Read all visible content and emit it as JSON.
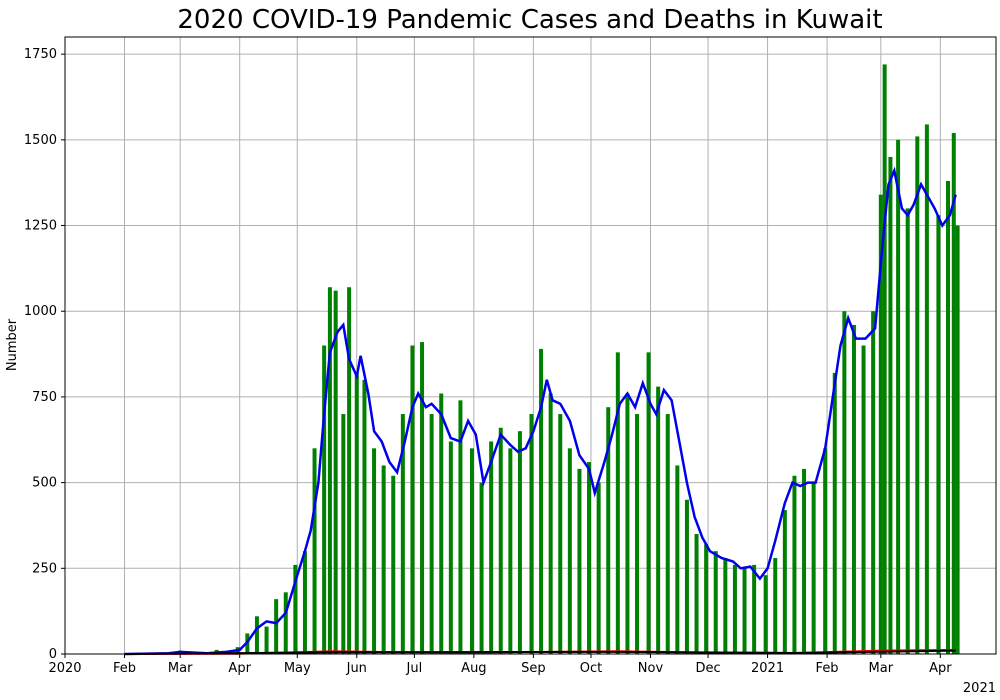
{
  "chart_data": {
    "type": "bar",
    "title": "2020 COVID-19 Pandemic Cases and Deaths in Kuwait",
    "xlabel": "",
    "ylabel": "Number",
    "ylim": [
      0,
      1800
    ],
    "xlim": [
      "2020-01-01",
      "2021-04-30"
    ],
    "grid": true,
    "x_ticks": [
      "2020",
      "Feb",
      "Mar",
      "Apr",
      "May",
      "Jun",
      "Jul",
      "Aug",
      "Sep",
      "Oct",
      "Nov",
      "Dec",
      "2021",
      "Feb",
      "Mar",
      "Apr"
    ],
    "x_tick_dates": [
      "2020-01-01",
      "2020-02-01",
      "2020-03-01",
      "2020-04-01",
      "2020-05-01",
      "2020-06-01",
      "2020-07-01",
      "2020-08-01",
      "2020-09-01",
      "2020-10-01",
      "2020-11-01",
      "2020-12-01",
      "2021-01-01",
      "2021-02-01",
      "2021-03-01",
      "2021-04-01"
    ],
    "x_offset_label": "2021",
    "y_ticks": [
      0,
      250,
      500,
      750,
      1000,
      1250,
      1500,
      1750
    ],
    "colors": {
      "cases": "#008000",
      "average": "#0000ee",
      "deaths": "#ff0000",
      "deaths_avg": "#000000"
    },
    "series": [
      {
        "type": "bar",
        "color": "#008000",
        "values": [
          {
            "x": "2020-02-24",
            "y": 5
          },
          {
            "x": "2020-03-01",
            "y": 10
          },
          {
            "x": "2020-03-10",
            "y": 4
          },
          {
            "x": "2020-03-20",
            "y": 12
          },
          {
            "x": "2020-03-31",
            "y": 20
          },
          {
            "x": "2020-04-05",
            "y": 60
          },
          {
            "x": "2020-04-10",
            "y": 110
          },
          {
            "x": "2020-04-15",
            "y": 80
          },
          {
            "x": "2020-04-20",
            "y": 160
          },
          {
            "x": "2020-04-25",
            "y": 180
          },
          {
            "x": "2020-04-30",
            "y": 260
          },
          {
            "x": "2020-05-05",
            "y": 300
          },
          {
            "x": "2020-05-10",
            "y": 600
          },
          {
            "x": "2020-05-15",
            "y": 900
          },
          {
            "x": "2020-05-18",
            "y": 1070
          },
          {
            "x": "2020-05-21",
            "y": 1060
          },
          {
            "x": "2020-05-25",
            "y": 700
          },
          {
            "x": "2020-05-28",
            "y": 1070
          },
          {
            "x": "2020-06-01",
            "y": 820
          },
          {
            "x": "2020-06-05",
            "y": 800
          },
          {
            "x": "2020-06-10",
            "y": 600
          },
          {
            "x": "2020-06-15",
            "y": 550
          },
          {
            "x": "2020-06-20",
            "y": 520
          },
          {
            "x": "2020-06-25",
            "y": 700
          },
          {
            "x": "2020-06-30",
            "y": 900
          },
          {
            "x": "2020-07-05",
            "y": 910
          },
          {
            "x": "2020-07-10",
            "y": 700
          },
          {
            "x": "2020-07-15",
            "y": 760
          },
          {
            "x": "2020-07-20",
            "y": 620
          },
          {
            "x": "2020-07-25",
            "y": 740
          },
          {
            "x": "2020-07-31",
            "y": 600
          },
          {
            "x": "2020-08-05",
            "y": 500
          },
          {
            "x": "2020-08-10",
            "y": 620
          },
          {
            "x": "2020-08-15",
            "y": 660
          },
          {
            "x": "2020-08-20",
            "y": 600
          },
          {
            "x": "2020-08-25",
            "y": 650
          },
          {
            "x": "2020-08-31",
            "y": 700
          },
          {
            "x": "2020-09-05",
            "y": 890
          },
          {
            "x": "2020-09-10",
            "y": 760
          },
          {
            "x": "2020-09-15",
            "y": 700
          },
          {
            "x": "2020-09-20",
            "y": 600
          },
          {
            "x": "2020-09-25",
            "y": 540
          },
          {
            "x": "2020-09-30",
            "y": 560
          },
          {
            "x": "2020-10-05",
            "y": 500
          },
          {
            "x": "2020-10-10",
            "y": 720
          },
          {
            "x": "2020-10-15",
            "y": 880
          },
          {
            "x": "2020-10-20",
            "y": 760
          },
          {
            "x": "2020-10-25",
            "y": 700
          },
          {
            "x": "2020-10-31",
            "y": 880
          },
          {
            "x": "2020-11-05",
            "y": 780
          },
          {
            "x": "2020-11-10",
            "y": 700
          },
          {
            "x": "2020-11-15",
            "y": 550
          },
          {
            "x": "2020-11-20",
            "y": 450
          },
          {
            "x": "2020-11-25",
            "y": 350
          },
          {
            "x": "2020-11-30",
            "y": 320
          },
          {
            "x": "2020-12-05",
            "y": 300
          },
          {
            "x": "2020-12-10",
            "y": 280
          },
          {
            "x": "2020-12-15",
            "y": 260
          },
          {
            "x": "2020-12-20",
            "y": 250
          },
          {
            "x": "2020-12-25",
            "y": 260
          },
          {
            "x": "2020-12-31",
            "y": 230
          },
          {
            "x": "2021-01-05",
            "y": 280
          },
          {
            "x": "2021-01-10",
            "y": 420
          },
          {
            "x": "2021-01-15",
            "y": 520
          },
          {
            "x": "2021-01-20",
            "y": 540
          },
          {
            "x": "2021-01-25",
            "y": 500
          },
          {
            "x": "2021-01-31",
            "y": 600
          },
          {
            "x": "2021-02-05",
            "y": 820
          },
          {
            "x": "2021-02-10",
            "y": 1000
          },
          {
            "x": "2021-02-15",
            "y": 960
          },
          {
            "x": "2021-02-20",
            "y": 900
          },
          {
            "x": "2021-02-25",
            "y": 1000
          },
          {
            "x": "2021-03-01",
            "y": 1340
          },
          {
            "x": "2021-03-03",
            "y": 1720
          },
          {
            "x": "2021-03-06",
            "y": 1450
          },
          {
            "x": "2021-03-10",
            "y": 1500
          },
          {
            "x": "2021-03-15",
            "y": 1300
          },
          {
            "x": "2021-03-20",
            "y": 1510
          },
          {
            "x": "2021-03-25",
            "y": 1545
          },
          {
            "x": "2021-03-31",
            "y": 1280
          },
          {
            "x": "2021-04-05",
            "y": 1380
          },
          {
            "x": "2021-04-08",
            "y": 1520
          },
          {
            "x": "2021-04-10",
            "y": 1250
          }
        ]
      },
      {
        "type": "line",
        "color": "#0000ee",
        "points": [
          {
            "x": "2020-02-01",
            "y": 0
          },
          {
            "x": "2020-02-24",
            "y": 2
          },
          {
            "x": "2020-03-01",
            "y": 6
          },
          {
            "x": "2020-03-15",
            "y": 2
          },
          {
            "x": "2020-03-25",
            "y": 6
          },
          {
            "x": "2020-04-01",
            "y": 12
          },
          {
            "x": "2020-04-05",
            "y": 35
          },
          {
            "x": "2020-04-10",
            "y": 75
          },
          {
            "x": "2020-04-15",
            "y": 95
          },
          {
            "x": "2020-04-20",
            "y": 90
          },
          {
            "x": "2020-04-25",
            "y": 120
          },
          {
            "x": "2020-05-01",
            "y": 230
          },
          {
            "x": "2020-05-05",
            "y": 300
          },
          {
            "x": "2020-05-08",
            "y": 360
          },
          {
            "x": "2020-05-12",
            "y": 500
          },
          {
            "x": "2020-05-15",
            "y": 700
          },
          {
            "x": "2020-05-18",
            "y": 880
          },
          {
            "x": "2020-05-22",
            "y": 940
          },
          {
            "x": "2020-05-25",
            "y": 960
          },
          {
            "x": "2020-05-28",
            "y": 860
          },
          {
            "x": "2020-06-01",
            "y": 810
          },
          {
            "x": "2020-06-03",
            "y": 870
          },
          {
            "x": "2020-06-07",
            "y": 760
          },
          {
            "x": "2020-06-10",
            "y": 650
          },
          {
            "x": "2020-06-14",
            "y": 620
          },
          {
            "x": "2020-06-18",
            "y": 560
          },
          {
            "x": "2020-06-22",
            "y": 530
          },
          {
            "x": "2020-06-26",
            "y": 620
          },
          {
            "x": "2020-06-30",
            "y": 720
          },
          {
            "x": "2020-07-03",
            "y": 760
          },
          {
            "x": "2020-07-07",
            "y": 720
          },
          {
            "x": "2020-07-10",
            "y": 730
          },
          {
            "x": "2020-07-15",
            "y": 700
          },
          {
            "x": "2020-07-20",
            "y": 630
          },
          {
            "x": "2020-07-25",
            "y": 620
          },
          {
            "x": "2020-07-29",
            "y": 680
          },
          {
            "x": "2020-08-02",
            "y": 640
          },
          {
            "x": "2020-08-06",
            "y": 500
          },
          {
            "x": "2020-08-10",
            "y": 560
          },
          {
            "x": "2020-08-15",
            "y": 640
          },
          {
            "x": "2020-08-20",
            "y": 610
          },
          {
            "x": "2020-08-24",
            "y": 590
          },
          {
            "x": "2020-08-28",
            "y": 600
          },
          {
            "x": "2020-09-01",
            "y": 650
          },
          {
            "x": "2020-09-05",
            "y": 720
          },
          {
            "x": "2020-09-08",
            "y": 800
          },
          {
            "x": "2020-09-11",
            "y": 740
          },
          {
            "x": "2020-09-15",
            "y": 730
          },
          {
            "x": "2020-09-20",
            "y": 680
          },
          {
            "x": "2020-09-25",
            "y": 580
          },
          {
            "x": "2020-09-30",
            "y": 540
          },
          {
            "x": "2020-10-03",
            "y": 470
          },
          {
            "x": "2020-10-08",
            "y": 560
          },
          {
            "x": "2020-10-12",
            "y": 640
          },
          {
            "x": "2020-10-16",
            "y": 730
          },
          {
            "x": "2020-10-20",
            "y": 760
          },
          {
            "x": "2020-10-24",
            "y": 720
          },
          {
            "x": "2020-10-28",
            "y": 790
          },
          {
            "x": "2020-11-01",
            "y": 730
          },
          {
            "x": "2020-11-04",
            "y": 700
          },
          {
            "x": "2020-11-08",
            "y": 770
          },
          {
            "x": "2020-11-12",
            "y": 740
          },
          {
            "x": "2020-11-16",
            "y": 620
          },
          {
            "x": "2020-11-20",
            "y": 500
          },
          {
            "x": "2020-11-24",
            "y": 400
          },
          {
            "x": "2020-11-28",
            "y": 340
          },
          {
            "x": "2020-12-02",
            "y": 300
          },
          {
            "x": "2020-12-08",
            "y": 280
          },
          {
            "x": "2020-12-14",
            "y": 270
          },
          {
            "x": "2020-12-18",
            "y": 250
          },
          {
            "x": "2020-12-23",
            "y": 255
          },
          {
            "x": "2020-12-28",
            "y": 220
          },
          {
            "x": "2021-01-01",
            "y": 250
          },
          {
            "x": "2021-01-05",
            "y": 330
          },
          {
            "x": "2021-01-10",
            "y": 440
          },
          {
            "x": "2021-01-14",
            "y": 500
          },
          {
            "x": "2021-01-18",
            "y": 490
          },
          {
            "x": "2021-01-22",
            "y": 500
          },
          {
            "x": "2021-01-26",
            "y": 500
          },
          {
            "x": "2021-01-31",
            "y": 600
          },
          {
            "x": "2021-02-04",
            "y": 750
          },
          {
            "x": "2021-02-08",
            "y": 900
          },
          {
            "x": "2021-02-12",
            "y": 980
          },
          {
            "x": "2021-02-16",
            "y": 920
          },
          {
            "x": "2021-02-21",
            "y": 920
          },
          {
            "x": "2021-02-26",
            "y": 950
          },
          {
            "x": "2021-03-02",
            "y": 1200
          },
          {
            "x": "2021-03-05",
            "y": 1370
          },
          {
            "x": "2021-03-08",
            "y": 1410
          },
          {
            "x": "2021-03-12",
            "y": 1300
          },
          {
            "x": "2021-03-15",
            "y": 1280
          },
          {
            "x": "2021-03-18",
            "y": 1310
          },
          {
            "x": "2021-03-22",
            "y": 1370
          },
          {
            "x": "2021-03-25",
            "y": 1340
          },
          {
            "x": "2021-03-29",
            "y": 1300
          },
          {
            "x": "2021-04-02",
            "y": 1250
          },
          {
            "x": "2021-04-06",
            "y": 1280
          },
          {
            "x": "2021-04-09",
            "y": 1340
          }
        ]
      },
      {
        "type": "line",
        "color": "#ff0000",
        "points": [
          {
            "x": "2020-02-01",
            "y": 0
          },
          {
            "x": "2020-04-01",
            "y": 1
          },
          {
            "x": "2020-05-20",
            "y": 8
          },
          {
            "x": "2020-06-10",
            "y": 6
          },
          {
            "x": "2020-08-01",
            "y": 4
          },
          {
            "x": "2020-10-15",
            "y": 8
          },
          {
            "x": "2020-12-01",
            "y": 4
          },
          {
            "x": "2021-01-15",
            "y": 3
          },
          {
            "x": "2021-03-01",
            "y": 10
          },
          {
            "x": "2021-04-09",
            "y": 12
          }
        ]
      },
      {
        "type": "line",
        "color": "#000000",
        "points": [
          {
            "x": "2020-02-01",
            "y": 0
          },
          {
            "x": "2020-05-20",
            "y": 5
          },
          {
            "x": "2020-10-15",
            "y": 6
          },
          {
            "x": "2021-01-15",
            "y": 3
          },
          {
            "x": "2021-04-09",
            "y": 10
          }
        ]
      }
    ]
  }
}
